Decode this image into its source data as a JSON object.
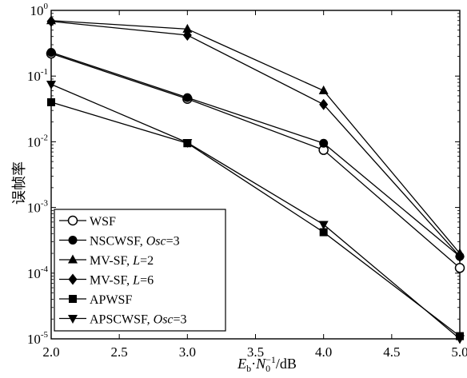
{
  "chart_data": {
    "type": "line",
    "title": "",
    "ylabel": "误帧率",
    "xlabel_parts": {
      "e": "E",
      "e_sub": "b",
      "sep": "·",
      "n": "N",
      "n_sub": "0",
      "n_sup": "−1",
      "unit": "/dB"
    },
    "x_scale": "linear",
    "y_scale": "log",
    "xlim": [
      2.0,
      5.0
    ],
    "ylim": [
      1e-05,
      1
    ],
    "grid": false,
    "legend_position": "bottom-left",
    "x_ticks": [
      "2.0",
      "2.5",
      "3.0",
      "3.5",
      "4.0",
      "4.5",
      "5.0"
    ],
    "x_tick_values": [
      2.0,
      2.5,
      3.0,
      3.5,
      4.0,
      4.5,
      5.0
    ],
    "y_ticks": [
      {
        "base": "10",
        "exp": "0",
        "value": 1
      },
      {
        "base": "10",
        "exp": "-1",
        "value": 0.1
      },
      {
        "base": "10",
        "exp": "-2",
        "value": 0.01
      },
      {
        "base": "10",
        "exp": "-3",
        "value": 0.001
      },
      {
        "base": "10",
        "exp": "-4",
        "value": 0.0001
      },
      {
        "base": "10",
        "exp": "-5",
        "value": 1e-05
      }
    ],
    "x": [
      2.0,
      3.0,
      4.0,
      5.0
    ],
    "series": [
      {
        "name": "WSF",
        "italic_part": "",
        "suffix": "",
        "marker": "circle-open",
        "values": [
          0.22,
          0.045,
          0.0075,
          0.00012
        ]
      },
      {
        "name": "NSCWSF, ",
        "italic_part": "Osc",
        "suffix": "=3",
        "marker": "circle-filled",
        "values": [
          0.23,
          0.047,
          0.0095,
          0.00018
        ]
      },
      {
        "name": "MV-SF, ",
        "italic_part": "L",
        "suffix": "=2",
        "marker": "triangle-up",
        "values": [
          0.7,
          0.52,
          0.06,
          0.0002
        ]
      },
      {
        "name": "MV-SF, ",
        "italic_part": "L",
        "suffix": "=6",
        "marker": "diamond",
        "values": [
          0.68,
          0.42,
          0.037,
          0.00018
        ]
      },
      {
        "name": "APWSF",
        "italic_part": "",
        "suffix": "",
        "marker": "square",
        "values": [
          0.04,
          0.0095,
          0.00042,
          1.1e-05
        ]
      },
      {
        "name": "APSCWSF, ",
        "italic_part": "Osc",
        "suffix": "=3",
        "marker": "triangle-down",
        "values": [
          0.075,
          0.0097,
          0.00055,
          1e-05
        ]
      }
    ]
  }
}
